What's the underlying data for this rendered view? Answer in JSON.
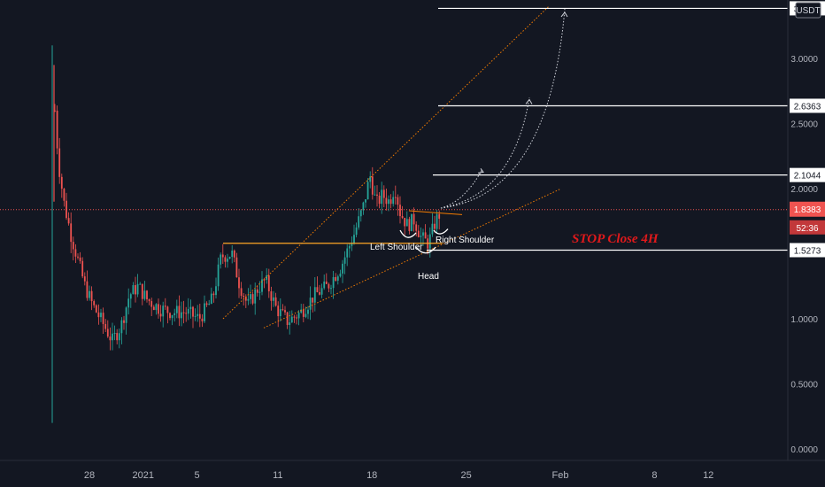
{
  "chart_data": {
    "type": "candlestick",
    "symbol_currency": "USDT",
    "y_ticks": [
      "3.0000",
      "2.5000",
      "2.0000",
      "1.5000",
      "1.0000",
      "0.5000",
      "0.0000"
    ],
    "x_ticks": [
      "28",
      "2021",
      "5",
      "11",
      "18",
      "25",
      "Feb",
      "8",
      "12"
    ],
    "ylim": [
      0,
      3.4
    ],
    "price_levels": [
      {
        "value": 3.3849,
        "label": "3.3849"
      },
      {
        "value": 2.6363,
        "label": "2.6363"
      },
      {
        "value": 2.1044,
        "label": "2.1044"
      },
      {
        "value": 1.5273,
        "label": "1.5273"
      }
    ],
    "last_price": {
      "value": 1.8383,
      "label": "1.8383",
      "countdown": "52:36"
    },
    "annotations": {
      "left_shoulder": "Left Shoulder",
      "right_shoulder": "Right Shoulder",
      "head": "Head",
      "stop": "STOP Close 4H"
    },
    "colors": {
      "up": "#26a69a",
      "down": "#ef5350",
      "trend": "#f57c00",
      "neckline": "#ffa726",
      "stop_text": "#e0191b",
      "last_price": "#ef5350"
    },
    "grid": false,
    "legend": "none"
  }
}
